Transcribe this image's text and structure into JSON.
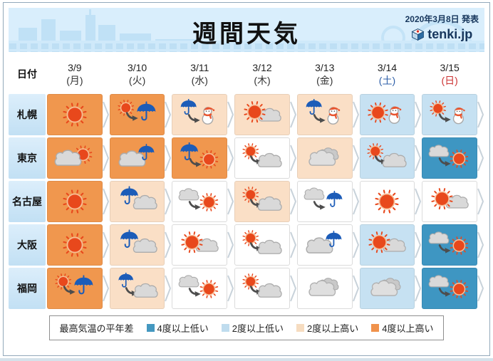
{
  "header": {
    "title": "週間天気",
    "published": "2020年3月8日 発表",
    "brand": "tenki.jp"
  },
  "table": {
    "date_label": "日付",
    "dates": [
      {
        "date": "3/9",
        "dow": "(月)",
        "dow_color": "#333333"
      },
      {
        "date": "3/10",
        "dow": "(火)",
        "dow_color": "#333333"
      },
      {
        "date": "3/11",
        "dow": "(水)",
        "dow_color": "#333333"
      },
      {
        "date": "3/12",
        "dow": "(木)",
        "dow_color": "#333333"
      },
      {
        "date": "3/13",
        "dow": "(金)",
        "dow_color": "#333333"
      },
      {
        "date": "3/14",
        "dow": "(土)",
        "dow_color": "#2E5FA8"
      },
      {
        "date": "3/15",
        "dow": "(日)",
        "dow_color": "#CC3333"
      }
    ],
    "rows": [
      {
        "city": "札幌",
        "slug": "sapporo",
        "cells": [
          {
            "weather": "sunny",
            "temp": "much_higher"
          },
          {
            "weather": "sun_then_rain",
            "temp": "much_higher"
          },
          {
            "weather": "rain_then_snow",
            "temp": "higher"
          },
          {
            "weather": "sun_and_cloud",
            "temp": "higher"
          },
          {
            "weather": "rain_then_snow",
            "temp": "higher"
          },
          {
            "weather": "sun_and_snow",
            "temp": "lower"
          },
          {
            "weather": "sun_then_snow",
            "temp": "lower"
          }
        ]
      },
      {
        "city": "東京",
        "slug": "tokyo",
        "cells": [
          {
            "weather": "cloud_and_sun",
            "temp": "much_higher"
          },
          {
            "weather": "cloud_and_rain",
            "temp": "much_higher"
          },
          {
            "weather": "rain_then_sun",
            "temp": "much_higher"
          },
          {
            "weather": "sun_then_cloud",
            "temp": "normal"
          },
          {
            "weather": "cloudy",
            "temp": "higher"
          },
          {
            "weather": "sun_then_cloud",
            "temp": "lower"
          },
          {
            "weather": "cloud_then_sun",
            "temp": "much_lower"
          }
        ]
      },
      {
        "city": "名古屋",
        "slug": "nagoya",
        "cells": [
          {
            "weather": "sunny",
            "temp": "much_higher"
          },
          {
            "weather": "rain_and_cloud",
            "temp": "higher"
          },
          {
            "weather": "cloud_then_sun",
            "temp": "normal"
          },
          {
            "weather": "sun_then_cloud",
            "temp": "higher"
          },
          {
            "weather": "cloud_then_rain",
            "temp": "normal"
          },
          {
            "weather": "sunny",
            "temp": "normal"
          },
          {
            "weather": "sun_and_cloud",
            "temp": "normal"
          }
        ]
      },
      {
        "city": "大阪",
        "slug": "osaka",
        "cells": [
          {
            "weather": "sunny",
            "temp": "much_higher"
          },
          {
            "weather": "rain_and_cloud",
            "temp": "higher"
          },
          {
            "weather": "sun_and_cloud",
            "temp": "normal"
          },
          {
            "weather": "sun_then_cloud",
            "temp": "normal"
          },
          {
            "weather": "cloud_and_rain",
            "temp": "normal"
          },
          {
            "weather": "sun_and_cloud",
            "temp": "lower"
          },
          {
            "weather": "cloud_then_sun",
            "temp": "much_lower"
          }
        ]
      },
      {
        "city": "福岡",
        "slug": "fukuoka",
        "cells": [
          {
            "weather": "sun_then_rain",
            "temp": "much_higher"
          },
          {
            "weather": "rain_then_cloud",
            "temp": "higher"
          },
          {
            "weather": "cloud_then_sun",
            "temp": "normal"
          },
          {
            "weather": "sun_then_cloud",
            "temp": "normal"
          },
          {
            "weather": "cloudy",
            "temp": "normal"
          },
          {
            "weather": "cloudy",
            "temp": "lower"
          },
          {
            "weather": "cloud_then_sun",
            "temp": "much_lower"
          }
        ]
      }
    ]
  },
  "temp_colors": {
    "much_lower": "#3E96C2",
    "lower": "#C6E1F2",
    "normal": "#FFFFFF",
    "higher": "#FADFC6",
    "much_higher": "#F0974E"
  },
  "legend": {
    "title": "最高気温の平年差",
    "items": [
      {
        "key": "much_lower",
        "label": "4度以上低い",
        "color": "#4498C0"
      },
      {
        "key": "lower",
        "label": "2度以上低い",
        "color": "#BFDCEE"
      },
      {
        "key": "higher",
        "label": "2度以上高い",
        "color": "#F6DCC0"
      },
      {
        "key": "much_higher",
        "label": "4度以上高い",
        "color": "#F0924C"
      }
    ]
  }
}
